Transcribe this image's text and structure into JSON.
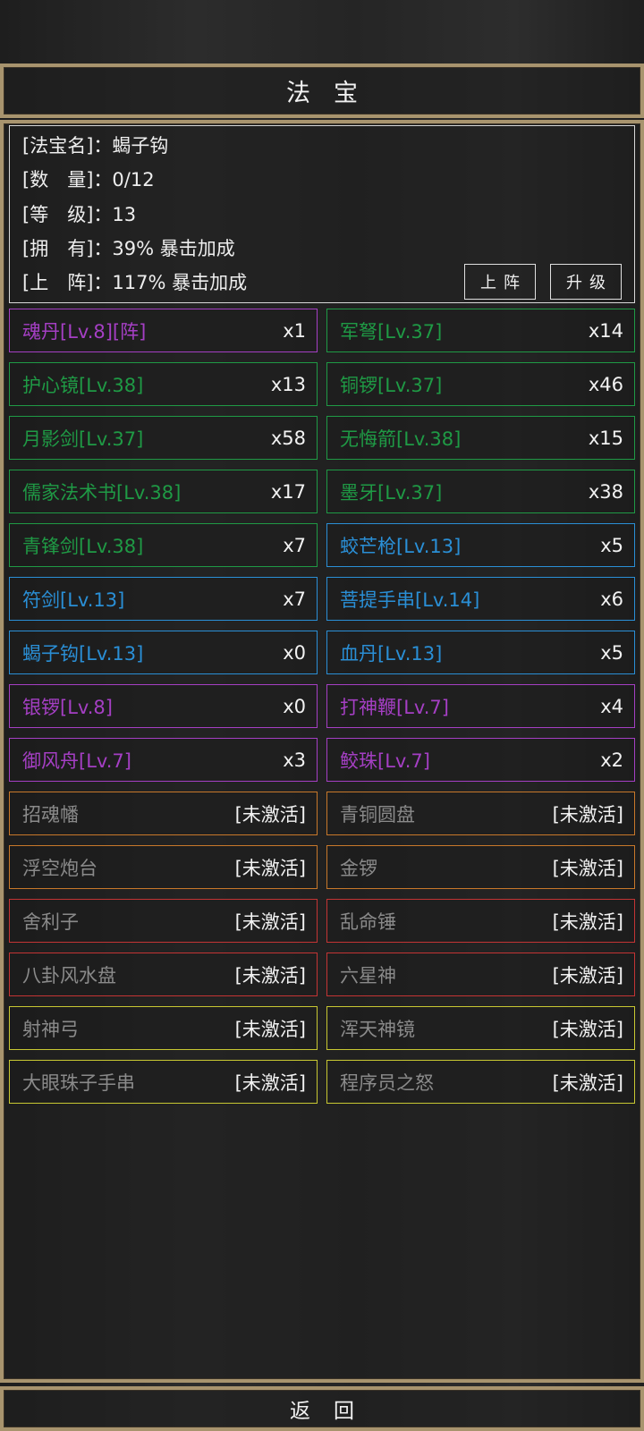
{
  "header": {
    "title": "法宝"
  },
  "info": {
    "rows": [
      {
        "label": "[法宝名]：",
        "value": "蝎子钩"
      },
      {
        "label": "[数　量]：",
        "value": "0/12"
      },
      {
        "label": "[等　级]：",
        "value": "13"
      },
      {
        "label": "[拥　有]：",
        "value": "39% 暴击加成"
      },
      {
        "label": "[上　阵]：",
        "value": "117% 暴击加成"
      }
    ],
    "deploy_label": "上阵",
    "upgrade_label": "升级"
  },
  "colors": {
    "purple": "#a53fc4",
    "green": "#1f9a45",
    "blue": "#2a8fd6",
    "orange": "#c8782a",
    "red": "#c43434",
    "yellow": "#c8c832",
    "inactive_text": "#8a8a8a"
  },
  "items": [
    {
      "name": "魂丹[Lv.8][阵]",
      "count": "x1",
      "rarity": "purple"
    },
    {
      "name": "军弩[Lv.37]",
      "count": "x14",
      "rarity": "green"
    },
    {
      "name": "护心镜[Lv.38]",
      "count": "x13",
      "rarity": "green"
    },
    {
      "name": "铜锣[Lv.37]",
      "count": "x46",
      "rarity": "green"
    },
    {
      "name": "月影剑[Lv.37]",
      "count": "x58",
      "rarity": "green"
    },
    {
      "name": "无悔箭[Lv.38]",
      "count": "x15",
      "rarity": "green"
    },
    {
      "name": "儒家法术书[Lv.38]",
      "count": "x17",
      "rarity": "green"
    },
    {
      "name": "墨牙[Lv.37]",
      "count": "x38",
      "rarity": "green"
    },
    {
      "name": "青锋剑[Lv.38]",
      "count": "x7",
      "rarity": "green"
    },
    {
      "name": "蛟芒枪[Lv.13]",
      "count": "x5",
      "rarity": "blue"
    },
    {
      "name": "符剑[Lv.13]",
      "count": "x7",
      "rarity": "blue"
    },
    {
      "name": "菩提手串[Lv.14]",
      "count": "x6",
      "rarity": "blue"
    },
    {
      "name": "蝎子钩[Lv.13]",
      "count": "x0",
      "rarity": "blue"
    },
    {
      "name": "血丹[Lv.13]",
      "count": "x5",
      "rarity": "blue"
    },
    {
      "name": "银锣[Lv.8]",
      "count": "x0",
      "rarity": "purple"
    },
    {
      "name": "打神鞭[Lv.7]",
      "count": "x4",
      "rarity": "purple"
    },
    {
      "name": "御风舟[Lv.7]",
      "count": "x3",
      "rarity": "purple"
    },
    {
      "name": "鲛珠[Lv.7]",
      "count": "x2",
      "rarity": "purple"
    },
    {
      "name": "招魂幡",
      "count": "[未激活]",
      "rarity": "orange",
      "inactive": true
    },
    {
      "name": "青铜圆盘",
      "count": "[未激活]",
      "rarity": "orange",
      "inactive": true
    },
    {
      "name": "浮空炮台",
      "count": "[未激活]",
      "rarity": "orange",
      "inactive": true
    },
    {
      "name": "金锣",
      "count": "[未激活]",
      "rarity": "orange",
      "inactive": true
    },
    {
      "name": "舍利子",
      "count": "[未激活]",
      "rarity": "red",
      "inactive": true
    },
    {
      "name": "乱命锤",
      "count": "[未激活]",
      "rarity": "red",
      "inactive": true
    },
    {
      "name": "八卦风水盘",
      "count": "[未激活]",
      "rarity": "red",
      "inactive": true
    },
    {
      "name": "六星神",
      "count": "[未激活]",
      "rarity": "red",
      "inactive": true
    },
    {
      "name": "射神弓",
      "count": "[未激活]",
      "rarity": "yellow",
      "inactive": true
    },
    {
      "name": "浑天神镜",
      "count": "[未激活]",
      "rarity": "yellow",
      "inactive": true
    },
    {
      "name": "大眼珠子手串",
      "count": "[未激活]",
      "rarity": "yellow",
      "inactive": true
    },
    {
      "name": "程序员之怒",
      "count": "[未激活]",
      "rarity": "yellow",
      "inactive": true
    }
  ],
  "footer": {
    "back_label": "返回"
  }
}
